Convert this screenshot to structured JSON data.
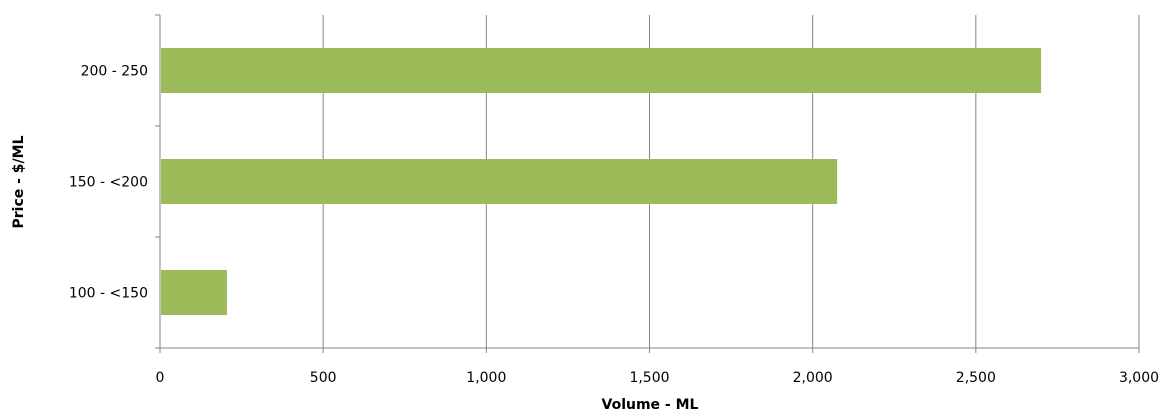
{
  "chart_data": {
    "type": "bar",
    "orientation": "horizontal",
    "categories": [
      "100 - <150",
      "150 - <200",
      "200 - 250"
    ],
    "values": [
      205,
      2075,
      2700
    ],
    "xlabel": "Volume - ML",
    "ylabel": "Price - $/ML",
    "xlim": [
      0,
      3000
    ],
    "x_ticks": [
      0,
      500,
      1000,
      1500,
      2000,
      2500,
      3000
    ],
    "x_tick_labels": [
      "0",
      "500",
      "1,000",
      "1,500",
      "2,000",
      "2,500",
      "3,000"
    ],
    "grid": "vertical",
    "legend": "none",
    "colors": {
      "bar": "#9bbb59",
      "grid": "#868686",
      "axis": "#868686"
    }
  }
}
